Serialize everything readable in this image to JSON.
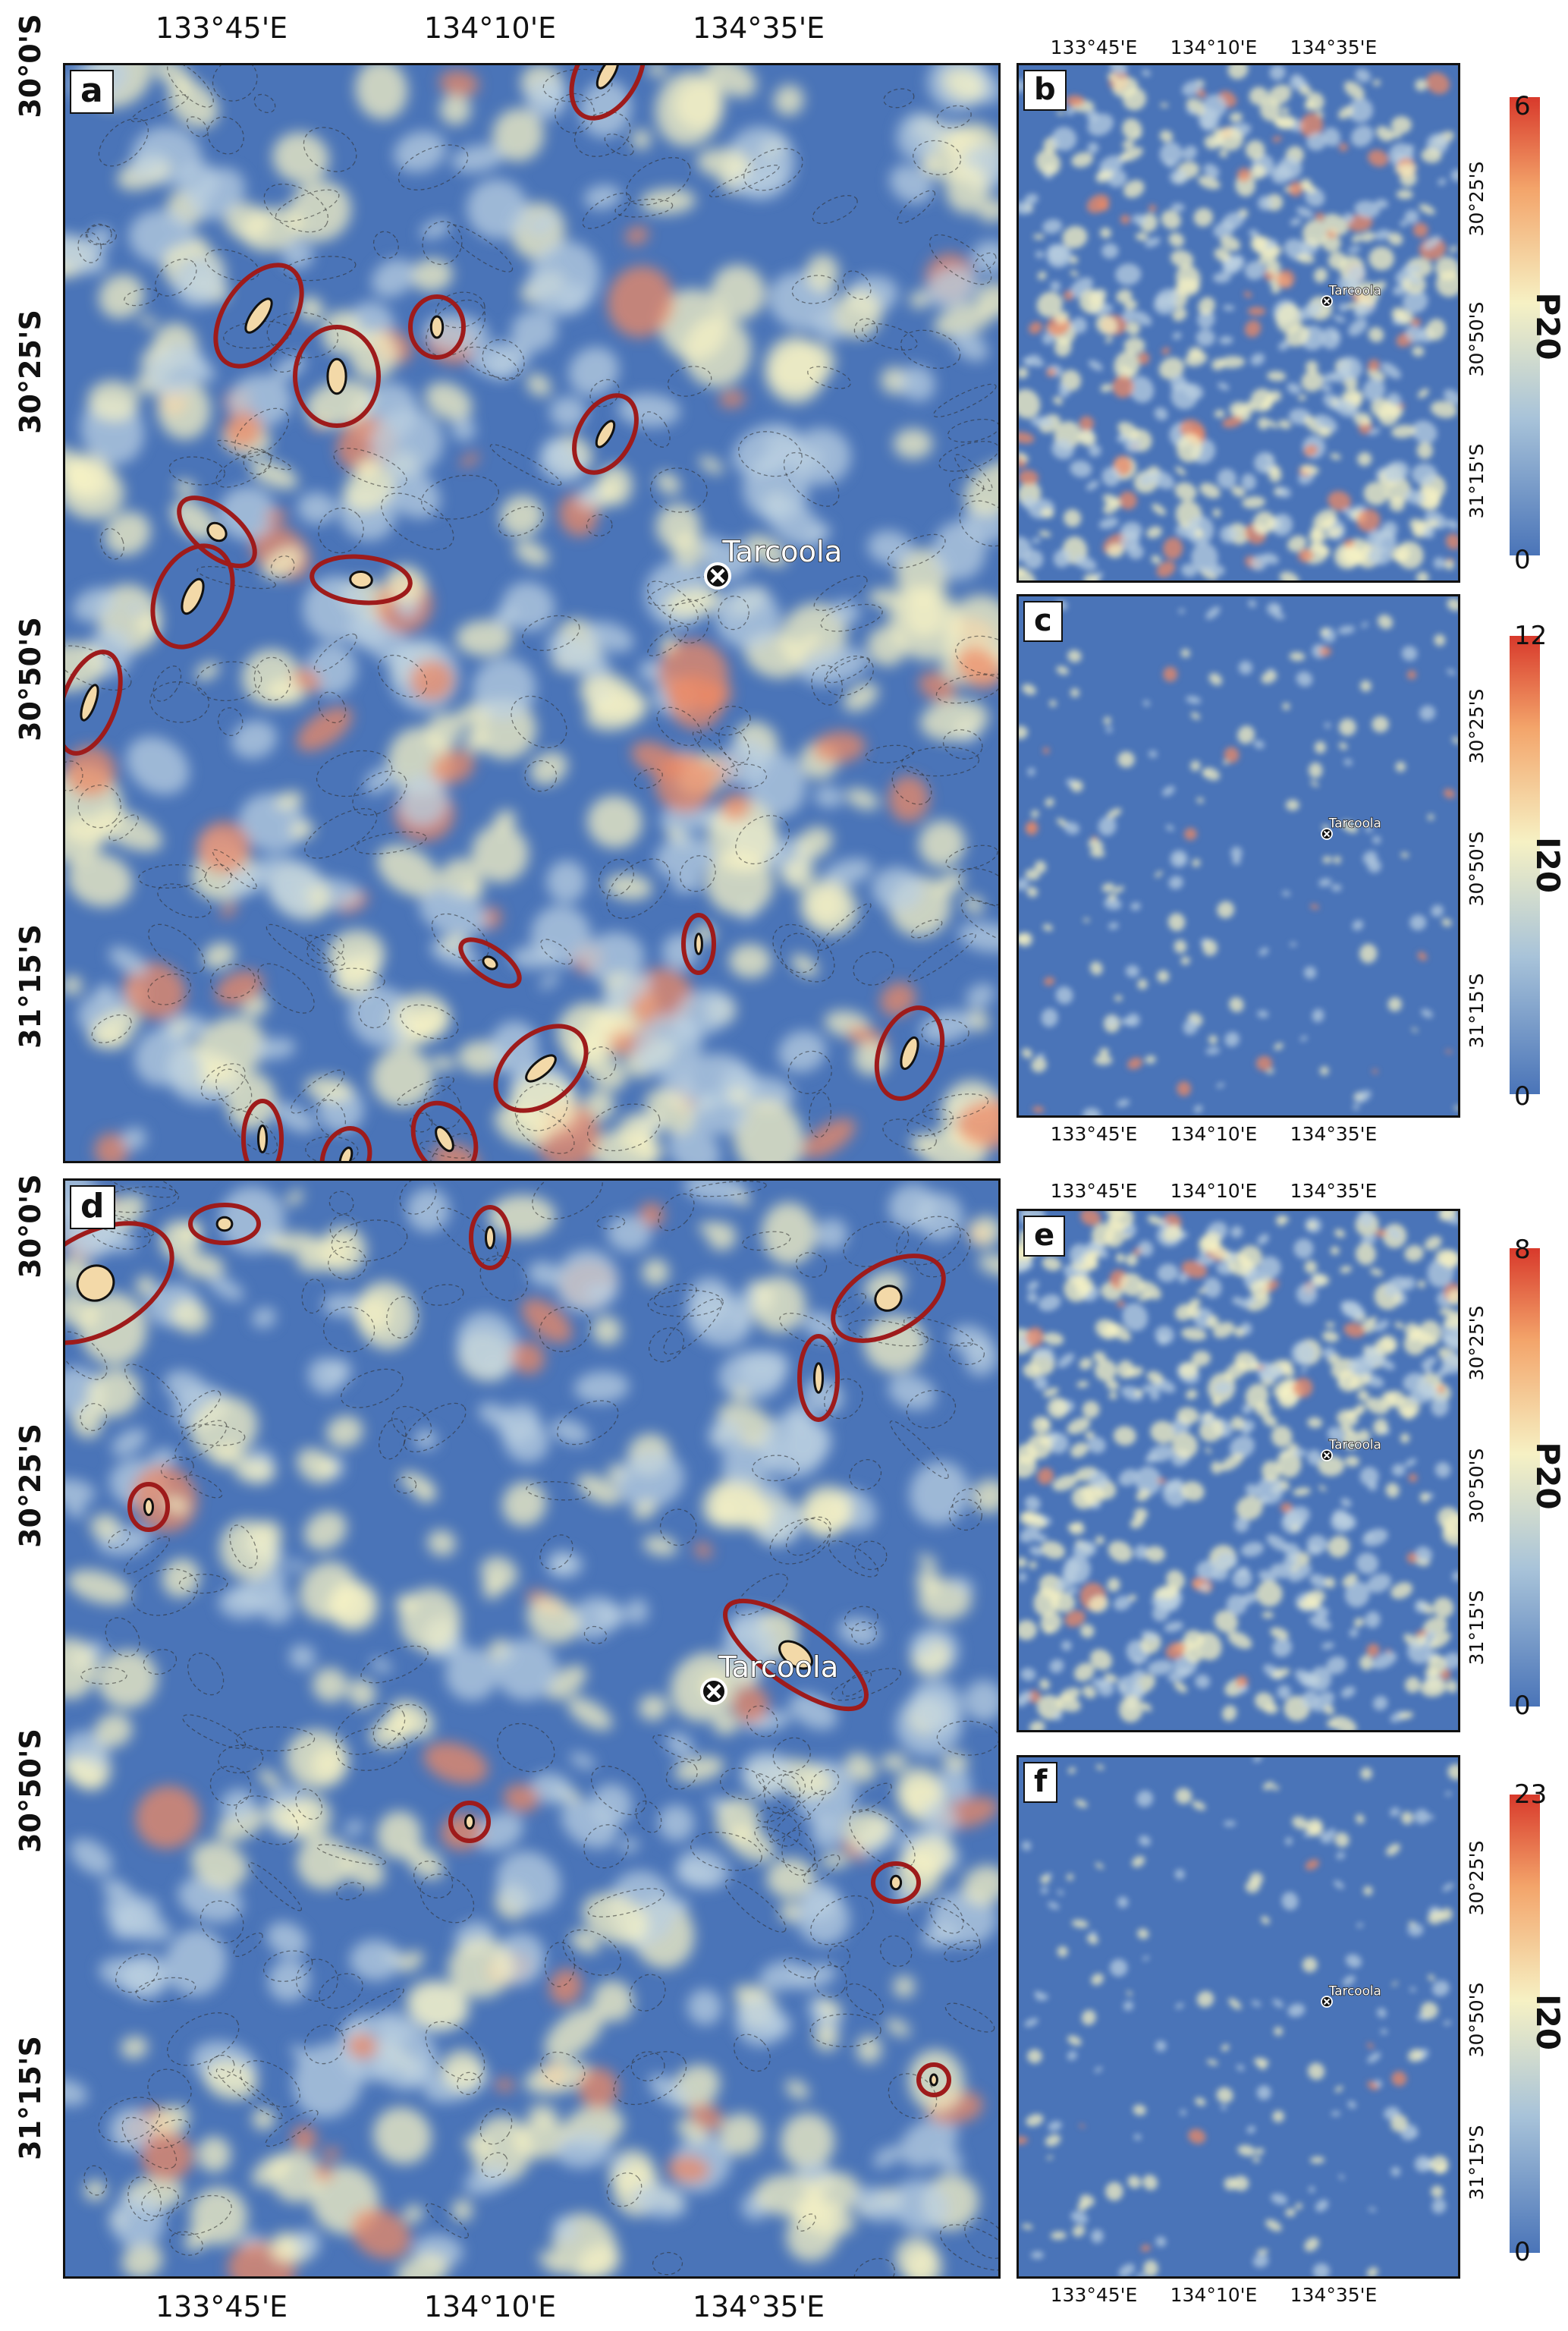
{
  "axes": {
    "lon_labels": [
      "133°45'E",
      "134°10'E",
      "134°35'E"
    ],
    "lat_labels": [
      "30°0'S",
      "30°25'S",
      "30°50'S",
      "31°15'S"
    ],
    "small_lat_labels": [
      "30°25'S",
      "30°50'S",
      "31°15'S"
    ]
  },
  "town": {
    "name": "Tarcoola"
  },
  "colors": {
    "low": "#4a74b8",
    "mid": "#f6f1c4",
    "high": "#d8392b",
    "ellipse": "#9e1b1b",
    "dashed_contour": "#2b2b2b"
  },
  "panels": {
    "a": {
      "label": "a"
    },
    "b": {
      "label": "b",
      "colorbar": {
        "name": "P20",
        "max": "6",
        "min": "0"
      }
    },
    "c": {
      "label": "c",
      "colorbar": {
        "name": "I20",
        "max": "12",
        "min": "0"
      }
    },
    "d": {
      "label": "d"
    },
    "e": {
      "label": "e",
      "colorbar": {
        "name": "P20",
        "max": "8",
        "min": "0"
      }
    },
    "f": {
      "label": "f",
      "colorbar": {
        "name": "I20",
        "max": "23",
        "min": "0"
      }
    }
  }
}
